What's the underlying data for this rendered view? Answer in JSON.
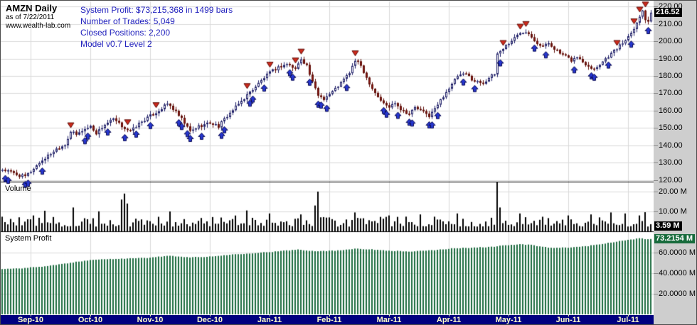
{
  "header": {
    "title": "AMZN Daily",
    "as_of": "as of 7/22/2011",
    "website": "www.wealth-lab.com"
  },
  "summary": {
    "lines": [
      "System Profit: $73,215,368 in 1499 bars",
      "Number of Trades:  5,049",
      "Closed Positions:  2,200",
      "Model v0.7  Level 2"
    ]
  },
  "colors": {
    "background": "#ffffff",
    "gutter": "#cecece",
    "grid": "#d9d9d9",
    "divider": "#000000",
    "date_bar": "#000080",
    "date_text": "#ffffc8",
    "summary_text": "#2121bd",
    "up_candle_fill": "#ffffff",
    "up_candle_stroke": "#1d1d66",
    "down_candle_fill": "#8e1b14",
    "down_candle_stroke": "#5f0f0a",
    "buy_arrow": "#2636cf",
    "buy_arrow_border": "#0a0a50",
    "sell_arrow": "#cd2a1c",
    "sell_arrow_border": "#5f0f0a",
    "volume_bar": "#000000",
    "profit_bar": "#1c6b3f",
    "last_price_box_bg": "#000000",
    "last_volume_box_bg": "#000000",
    "profit_box_bg": "#176b3c"
  },
  "price_panel": {
    "axis_ticks": [
      {
        "value": 220,
        "label": "220.00"
      },
      {
        "value": 210,
        "label": "210.00"
      },
      {
        "value": 200,
        "label": "200.00"
      },
      {
        "value": 190,
        "label": "190.00"
      },
      {
        "value": 180,
        "label": "180.00"
      },
      {
        "value": 170,
        "label": "170.00"
      },
      {
        "value": 160,
        "label": "160.00"
      },
      {
        "value": 150,
        "label": "150.00"
      },
      {
        "value": 140,
        "label": "140.00"
      },
      {
        "value": 130,
        "label": "130.00"
      },
      {
        "value": 120,
        "label": "120.00"
      }
    ],
    "last_price": 216.52,
    "last_price_label": "216.52"
  },
  "volume_panel": {
    "label": "Volume",
    "axis_ticks": [
      {
        "value": 20,
        "label": "20.00 M"
      },
      {
        "value": 10,
        "label": "10.00 M"
      }
    ],
    "last_value": 3.59,
    "last_value_label": "3.59 M"
  },
  "profit_panel": {
    "label": "System Profit",
    "axis_ticks": [
      {
        "value": 60,
        "label": "60.0000 M"
      },
      {
        "value": 40,
        "label": "40.0000 M"
      },
      {
        "value": 20,
        "label": "20.0000 M"
      }
    ],
    "last_value": 73.2154,
    "last_value_label": "73.2154 M"
  },
  "date_axis": {
    "labels": [
      "Sep-10",
      "Oct-10",
      "Nov-10",
      "Dec-10",
      "Jan-11",
      "Feb-11",
      "Mar-11",
      "Apr-11",
      "May-11",
      "Jun-11",
      "Jul-11"
    ],
    "tick_bar_indices": [
      10,
      31,
      52,
      73,
      94,
      115,
      136,
      157,
      178,
      199,
      220
    ]
  },
  "chart_data": [
    {
      "type": "candlestick",
      "name": "AMZN daily price",
      "bar_count": 229,
      "ylim": [
        119,
        223
      ],
      "close_waypoints": [
        [
          0,
          126
        ],
        [
          3,
          124.5
        ],
        [
          6,
          122.5
        ],
        [
          8,
          122
        ],
        [
          10,
          125
        ],
        [
          13,
          130
        ],
        [
          16,
          134
        ],
        [
          19,
          138
        ],
        [
          22,
          140.5
        ],
        [
          24,
          148
        ],
        [
          26,
          146
        ],
        [
          28,
          148.5
        ],
        [
          31,
          151
        ],
        [
          33,
          147
        ],
        [
          36,
          152
        ],
        [
          39,
          155
        ],
        [
          42,
          151
        ],
        [
          45,
          148
        ],
        [
          48,
          152.5
        ],
        [
          52,
          157
        ],
        [
          55,
          160
        ],
        [
          58,
          164
        ],
        [
          60,
          161
        ],
        [
          63,
          155
        ],
        [
          66,
          148
        ],
        [
          69,
          151
        ],
        [
          73,
          153
        ],
        [
          76,
          151
        ],
        [
          79,
          157
        ],
        [
          82,
          162
        ],
        [
          86,
          169
        ],
        [
          89,
          174
        ],
        [
          92,
          179
        ],
        [
          94,
          182
        ],
        [
          97,
          185
        ],
        [
          100,
          187
        ],
        [
          103,
          184
        ],
        [
          105,
          190
        ],
        [
          107,
          186
        ],
        [
          109,
          176
        ],
        [
          111,
          169
        ],
        [
          113,
          167
        ],
        [
          116,
          171
        ],
        [
          119,
          176
        ],
        [
          122,
          182
        ],
        [
          124,
          189
        ],
        [
          126,
          186
        ],
        [
          128,
          179
        ],
        [
          130,
          173
        ],
        [
          132,
          168
        ],
        [
          134,
          164
        ],
        [
          136,
          162
        ],
        [
          138,
          165
        ],
        [
          140,
          161
        ],
        [
          143,
          158
        ],
        [
          145,
          162
        ],
        [
          148,
          159
        ],
        [
          150,
          157
        ],
        [
          152,
          161
        ],
        [
          154,
          166
        ],
        [
          156,
          171
        ],
        [
          158,
          175
        ],
        [
          160,
          180
        ],
        [
          163,
          181
        ],
        [
          166,
          177
        ],
        [
          169,
          176
        ],
        [
          171,
          179
        ],
        [
          173,
          181
        ],
        [
          174,
          193
        ],
        [
          176,
          196
        ],
        [
          178,
          199
        ],
        [
          180,
          202
        ],
        [
          182,
          205
        ],
        [
          184,
          206
        ],
        [
          186,
          203
        ],
        [
          188,
          199
        ],
        [
          190,
          197
        ],
        [
          192,
          199
        ],
        [
          194,
          196
        ],
        [
          196,
          193
        ],
        [
          198,
          191
        ],
        [
          200,
          189
        ],
        [
          202,
          191
        ],
        [
          204,
          188
        ],
        [
          206,
          186
        ],
        [
          208,
          184
        ],
        [
          210,
          187
        ],
        [
          212,
          190
        ],
        [
          214,
          193
        ],
        [
          216,
          196
        ],
        [
          218,
          199
        ],
        [
          220,
          203
        ],
        [
          222,
          208
        ],
        [
          224,
          214
        ],
        [
          225,
          218
        ],
        [
          226,
          213
        ],
        [
          227,
          212
        ],
        [
          228,
          216.52
        ]
      ],
      "buy_signal_indices": [
        1,
        2,
        8,
        9,
        14,
        29,
        30,
        37,
        43,
        47,
        52,
        62,
        63,
        65,
        66,
        70,
        77,
        78,
        87,
        88,
        92,
        101,
        102,
        108,
        111,
        112,
        114,
        121,
        134,
        135,
        139,
        143,
        144,
        150,
        151,
        153,
        162,
        166,
        175,
        187,
        191,
        201,
        207,
        208,
        213,
        221,
        227
      ],
      "sell_signal_indices": [
        24,
        44,
        54,
        86,
        94,
        103,
        105,
        124,
        176,
        182,
        184,
        216,
        222,
        224,
        226
      ],
      "last_close": 216.52
    },
    {
      "type": "bar",
      "name": "Volume (millions of shares)",
      "ylim": [
        0,
        25
      ],
      "base_range": [
        2.4,
        7.4
      ],
      "spikes": [
        [
          25,
          12
        ],
        [
          42,
          16
        ],
        [
          43,
          19
        ],
        [
          44,
          14
        ],
        [
          59,
          10
        ],
        [
          86,
          10.5
        ],
        [
          94,
          9
        ],
        [
          105,
          8.5
        ],
        [
          110,
          13
        ],
        [
          111,
          20
        ],
        [
          124,
          9.5
        ],
        [
          136,
          8
        ],
        [
          147,
          8.5
        ],
        [
          160,
          9
        ],
        [
          174,
          25
        ],
        [
          175,
          12
        ],
        [
          182,
          9
        ],
        [
          199,
          8
        ],
        [
          207,
          8.5
        ],
        [
          214,
          9.5
        ],
        [
          219,
          9
        ],
        [
          224,
          8
        ],
        [
          228,
          3.59
        ]
      ],
      "last_value": 3.59
    },
    {
      "type": "bar",
      "name": "System Profit (millions of dollars)",
      "ylim": [
        0,
        80
      ],
      "waypoints": [
        [
          0,
          44
        ],
        [
          8,
          45
        ],
        [
          16,
          47
        ],
        [
          24,
          50
        ],
        [
          31,
          53
        ],
        [
          40,
          54
        ],
        [
          52,
          55
        ],
        [
          58,
          57
        ],
        [
          64,
          55.5
        ],
        [
          73,
          56
        ],
        [
          80,
          58
        ],
        [
          88,
          59.5
        ],
        [
          96,
          61
        ],
        [
          104,
          63
        ],
        [
          110,
          61.5
        ],
        [
          118,
          62
        ],
        [
          124,
          64
        ],
        [
          130,
          63
        ],
        [
          136,
          62
        ],
        [
          143,
          61
        ],
        [
          150,
          62
        ],
        [
          158,
          64
        ],
        [
          166,
          65
        ],
        [
          172,
          65.5
        ],
        [
          176,
          67
        ],
        [
          182,
          68
        ],
        [
          186,
          67.5
        ],
        [
          190,
          65.5
        ],
        [
          194,
          64.5
        ],
        [
          200,
          65
        ],
        [
          206,
          66.5
        ],
        [
          210,
          68
        ],
        [
          214,
          70
        ],
        [
          218,
          71.5
        ],
        [
          221,
          72.5
        ],
        [
          224,
          74
        ],
        [
          226,
          73.2
        ],
        [
          228,
          73.2154
        ]
      ],
      "last_value": 73.2154
    }
  ]
}
